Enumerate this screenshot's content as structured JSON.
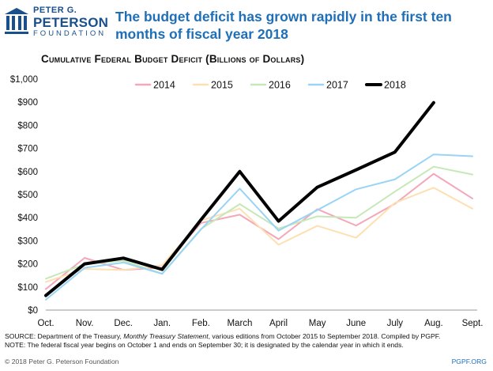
{
  "branding": {
    "line1": "PETER G.",
    "line2": "PETERSON",
    "line3": "FOUNDATION",
    "logo_icon": "pillars-icon",
    "brand_color": "#1a4f8b"
  },
  "title": "The budget deficit has grown rapidly in the first ten months of fiscal year 2018",
  "footer": {
    "source_prefix": "SOURCE: Department of the Treasury, ",
    "source_italic": "Monthly Treasury Statement",
    "source_suffix": ", various editions from October 2015 to September 2018. Compiled by PGPF.",
    "note": "NOTE: The federal fiscal year begins on October 1 and ends on September 30; it is designated by the calendar year in which it ends.",
    "copyright": "© 2018 Peter G. Peterson Foundation",
    "site": "PGPF.ORG"
  },
  "chart_data": {
    "type": "line",
    "title": "Cumulative Federal Budget Deficit (Billions of Dollars)",
    "categories": [
      "Oct.",
      "Nov.",
      "Dec.",
      "Jan.",
      "Feb.",
      "March",
      "April",
      "May",
      "June",
      "July",
      "Aug.",
      "Sept."
    ],
    "ylim": [
      0,
      1000
    ],
    "yticks": [
      0,
      100,
      200,
      300,
      400,
      500,
      600,
      700,
      800,
      900,
      1000
    ],
    "ytick_labels": [
      "$0",
      "$100",
      "$200",
      "$300",
      "$400",
      "$500",
      "$600",
      "$700",
      "$800",
      "$900",
      "$1,000"
    ],
    "grid": false,
    "legend_position": "top",
    "series": [
      {
        "name": "2014",
        "color": "#f4a7b9",
        "values": [
          91,
          226,
          174,
          184,
          377,
          413,
          307,
          437,
          366,
          460,
          590,
          483
        ]
      },
      {
        "name": "2015",
        "color": "#fde0b2",
        "values": [
          122,
          178,
          174,
          194,
          388,
          439,
          283,
          365,
          313,
          464,
          530,
          439
        ]
      },
      {
        "name": "2016",
        "color": "#c6e8b8",
        "values": [
          136,
          199,
          214,
          158,
          351,
          459,
          353,
          406,
          400,
          513,
          621,
          587
        ]
      },
      {
        "name": "2017",
        "color": "#9ad4f5",
        "values": [
          45,
          183,
          206,
          157,
          349,
          526,
          344,
          433,
          523,
          566,
          674,
          666
        ]
      },
      {
        "name": "2018",
        "color": "#000000",
        "values": [
          63,
          200,
          225,
          176,
          391,
          600,
          385,
          532,
          607,
          684,
          898,
          null
        ]
      }
    ]
  }
}
